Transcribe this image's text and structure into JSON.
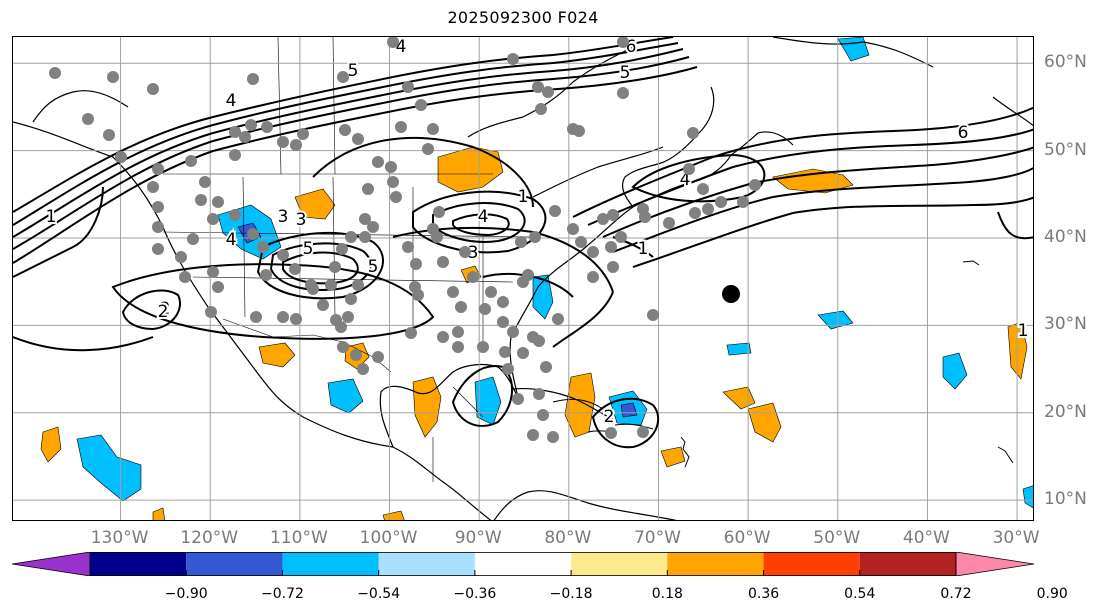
{
  "title": "2025092300 F024",
  "map": {
    "projection": "PlateCarree",
    "extent_lon": [
      -142,
      -28
    ],
    "extent_lat": [
      7.5,
      63
    ],
    "lon_ticks": [
      "130°W",
      "120°W",
      "110°W",
      "100°W",
      "90°W",
      "80°W",
      "70°W",
      "60°W",
      "50°W",
      "40°W",
      "30°W"
    ],
    "lat_ticks": [
      "60°N",
      "50°N",
      "40°N",
      "30°N",
      "20°N",
      "10°N"
    ],
    "grid": true,
    "tick_color": "#7a7a7a",
    "contour_labels": [
      "4",
      "5",
      "6",
      "5",
      "3",
      "5",
      "2",
      "4",
      "4",
      "3",
      "4",
      "5",
      "3",
      "2",
      "1",
      "1",
      "1",
      "6",
      "4",
      "2",
      "1"
    ],
    "marker_color": "#808080",
    "highlight_marker": "black-dot",
    "land_outline": "coastlines-borders-states"
  },
  "colorbar": {
    "ticks": [
      "−0.90",
      "−0.72",
      "−0.54",
      "−0.36",
      "−0.18",
      "0.18",
      "0.36",
      "0.54",
      "0.72",
      "0.90"
    ],
    "colors": [
      "#9932cc",
      "#00008b",
      "#3558d4",
      "#00bfff",
      "#aadfff",
      "#ffffff",
      "#fde98d",
      "#ffa500",
      "#ff4000",
      "#b22222",
      "#ff88aa"
    ],
    "extend": "both"
  },
  "chart_data": {
    "type": "heatmap",
    "title": "2025092300 F024",
    "xlabel": "",
    "ylabel": "",
    "x_ticks": [
      "130°W",
      "120°W",
      "110°W",
      "100°W",
      "90°W",
      "80°W",
      "70°W",
      "60°W",
      "50°W",
      "40°W",
      "30°W"
    ],
    "y_ticks": [
      "60°N",
      "50°N",
      "40°N",
      "30°N",
      "20°N",
      "10°N"
    ],
    "color_levels": [
      -0.9,
      -0.72,
      -0.54,
      -0.36,
      -0.18,
      0.18,
      0.36,
      0.54,
      0.72,
      0.9
    ],
    "grid": true,
    "legend": "colorbar-bottom"
  }
}
